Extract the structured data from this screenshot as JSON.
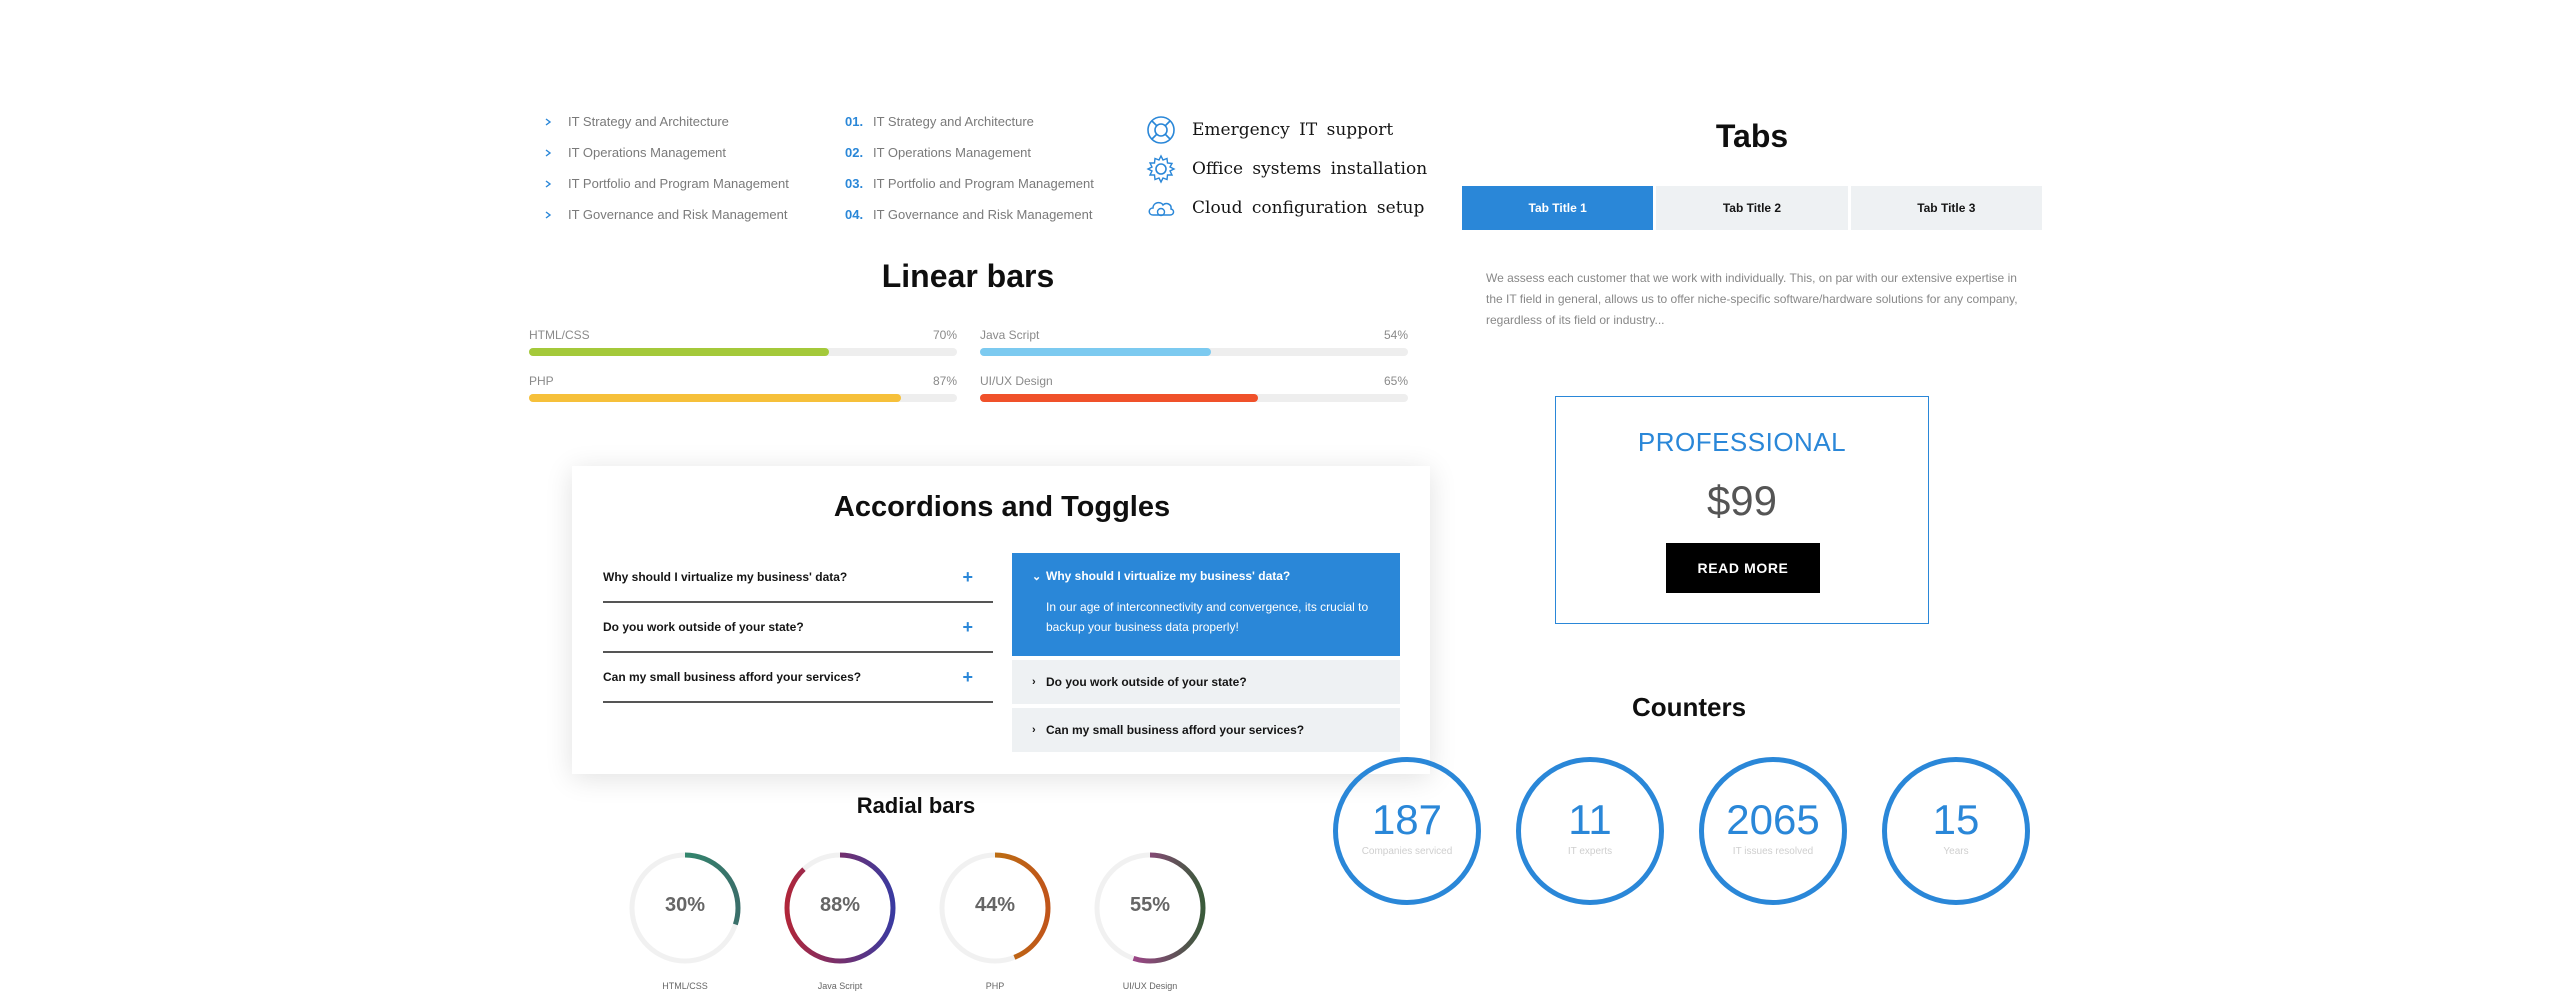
{
  "lists": {
    "chevron_items": [
      "IT Strategy and Architecture",
      "IT Operations Management",
      "IT Portfolio and Program Management",
      "IT Governance and Risk Management"
    ],
    "numbered_items": [
      {
        "num": "01.",
        "label": "IT Strategy and Architecture"
      },
      {
        "num": "02.",
        "label": "IT Operations Management"
      },
      {
        "num": "03.",
        "label": "IT Portfolio and Program Management"
      },
      {
        "num": "04.",
        "label": "IT Governance and Risk Management"
      }
    ],
    "icon_items": [
      {
        "icon": "lifebuoy-icon",
        "label": "Emergency IT support"
      },
      {
        "icon": "gear-icon",
        "label": "Office systems installation"
      },
      {
        "icon": "cloud-gear-icon",
        "label": "Cloud configuration setup"
      }
    ]
  },
  "tabs": {
    "heading": "Tabs",
    "items": [
      "Tab Title 1",
      "Tab Title 2",
      "Tab Title 3"
    ],
    "active_index": 0,
    "content": "We assess each customer that we work with individually. This, on par with our extensive expertise in the IT field in general, allows us to offer niche-specific software/hardware solutions for any company, regardless of its field or industry..."
  },
  "linear_bars": {
    "heading": "Linear bars",
    "items": [
      {
        "label": "HTML/CSS",
        "percent_text": "70%",
        "value": 70,
        "color": "#a4c93a"
      },
      {
        "label": "Java Script",
        "percent_text": "54%",
        "value": 54,
        "color": "#7ccaf0"
      },
      {
        "label": "PHP",
        "percent_text": "87%",
        "value": 87,
        "color": "#f6c03a"
      },
      {
        "label": "UI/UX Design",
        "percent_text": "65%",
        "value": 65,
        "color": "#f0512a"
      }
    ]
  },
  "accordions": {
    "heading": "Accordions and Toggles",
    "left_items": [
      "Why should I virtualize my business' data?",
      "Do you work outside of your state?",
      "Can my small business afford your services?"
    ],
    "right_open": {
      "question": "Why should I virtualize my business' data?",
      "answer": "In our age of interconnectivity and convergence, its crucial to backup your business data properly!"
    },
    "right_closed": [
      "Do you work outside of your state?",
      "Can my small business afford your services?"
    ]
  },
  "pricing": {
    "title": "PROFESSIONAL",
    "price": "$99",
    "button": "READ MORE"
  },
  "counters": {
    "heading": "Counters",
    "items": [
      {
        "value": "187",
        "label": "Companies serviced"
      },
      {
        "value": "11",
        "label": "IT experts"
      },
      {
        "value": "2065",
        "label": "IT issues resolved"
      },
      {
        "value": "15",
        "label": "Years"
      }
    ]
  },
  "radial_bars": {
    "heading": "Radial bars",
    "items": [
      {
        "percent_text": "30%",
        "value": 30,
        "label": "HTML/CSS",
        "color_start": "#2a9d6f",
        "color_end": "#3a6f6a"
      },
      {
        "percent_text": "88%",
        "value": 88,
        "label": "Java Script",
        "color_start": "#b0263a",
        "color_end": "#3a3aa0"
      },
      {
        "percent_text": "44%",
        "value": 44,
        "label": "PHP",
        "color_start": "#b8860b",
        "color_end": "#c0551a"
      },
      {
        "percent_text": "55%",
        "value": 55,
        "label": "UI/UX Design",
        "color_start": "#d03ab0",
        "color_end": "#3a5a3a"
      }
    ]
  },
  "colors": {
    "accent": "#2a87d8",
    "tab_inactive": "#eef1f3"
  }
}
